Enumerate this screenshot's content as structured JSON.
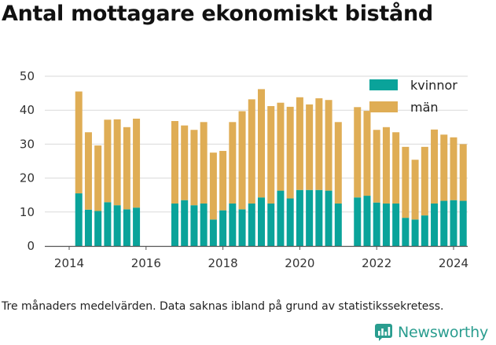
{
  "title": "Antal mottagare ekonomiskt bistånd",
  "caption": "Tre månaders medelvärden. Data saknas ibland på grund av statistikssekretess.",
  "brand": {
    "name": "Newsworthy",
    "icon": "newsworthy-logo-icon",
    "color": "#2a9d8f"
  },
  "colors": {
    "kvinnor": "#0aa39a",
    "man": "#dfad55",
    "grid": "#d9d9d9",
    "axis": "#555555"
  },
  "chart_data": {
    "type": "bar",
    "stacked": true,
    "x_ticks": [
      "2014",
      "2016",
      "2018",
      "2020",
      "2022",
      "2024"
    ],
    "y_ticks": [
      "0",
      "10",
      "20",
      "30",
      "40",
      "50"
    ],
    "ylim": [
      0,
      50
    ],
    "grid": true,
    "legend_position": "top-right",
    "series": [
      {
        "name": "kvinnor",
        "color": "#0aa39a",
        "points": [
          {
            "x": 2014.25,
            "v": 15.5
          },
          {
            "x": 2014.5,
            "v": 10.7
          },
          {
            "x": 2014.75,
            "v": 10.3
          },
          {
            "x": 2015.0,
            "v": 12.9
          },
          {
            "x": 2015.25,
            "v": 12.0
          },
          {
            "x": 2015.5,
            "v": 10.8
          },
          {
            "x": 2015.75,
            "v": 11.3
          },
          {
            "x": 2016.75,
            "v": 12.5
          },
          {
            "x": 2017.0,
            "v": 13.5
          },
          {
            "x": 2017.25,
            "v": 12.0
          },
          {
            "x": 2017.5,
            "v": 12.5
          },
          {
            "x": 2017.75,
            "v": 7.8
          },
          {
            "x": 2018.0,
            "v": 10.5
          },
          {
            "x": 2018.25,
            "v": 12.5
          },
          {
            "x": 2018.5,
            "v": 10.8
          },
          {
            "x": 2018.75,
            "v": 12.5
          },
          {
            "x": 2019.0,
            "v": 14.3
          },
          {
            "x": 2019.25,
            "v": 12.5
          },
          {
            "x": 2019.5,
            "v": 16.3
          },
          {
            "x": 2019.75,
            "v": 14.0
          },
          {
            "x": 2020.0,
            "v": 16.5
          },
          {
            "x": 2020.25,
            "v": 16.5
          },
          {
            "x": 2020.5,
            "v": 16.5
          },
          {
            "x": 2020.75,
            "v": 16.3
          },
          {
            "x": 2021.0,
            "v": 12.5
          },
          {
            "x": 2021.5,
            "v": 14.3
          },
          {
            "x": 2021.75,
            "v": 14.8
          },
          {
            "x": 2022.0,
            "v": 12.8
          },
          {
            "x": 2022.25,
            "v": 12.5
          },
          {
            "x": 2022.5,
            "v": 12.5
          },
          {
            "x": 2022.75,
            "v": 8.3
          },
          {
            "x": 2023.0,
            "v": 7.8
          },
          {
            "x": 2023.25,
            "v": 9.0
          },
          {
            "x": 2023.5,
            "v": 12.5
          },
          {
            "x": 2023.75,
            "v": 13.3
          },
          {
            "x": 2024.0,
            "v": 13.5
          },
          {
            "x": 2024.25,
            "v": 13.3
          }
        ]
      },
      {
        "name": "män",
        "color": "#dfad55",
        "points": [
          {
            "x": 2014.25,
            "v": 30.0
          },
          {
            "x": 2014.5,
            "v": 22.8
          },
          {
            "x": 2014.75,
            "v": 19.3
          },
          {
            "x": 2015.0,
            "v": 24.3
          },
          {
            "x": 2015.25,
            "v": 25.3
          },
          {
            "x": 2015.5,
            "v": 24.2
          },
          {
            "x": 2015.75,
            "v": 26.2
          },
          {
            "x": 2016.75,
            "v": 24.3
          },
          {
            "x": 2017.0,
            "v": 22.0
          },
          {
            "x": 2017.25,
            "v": 22.2
          },
          {
            "x": 2017.5,
            "v": 24.0
          },
          {
            "x": 2017.75,
            "v": 19.7
          },
          {
            "x": 2018.0,
            "v": 17.5
          },
          {
            "x": 2018.25,
            "v": 24.0
          },
          {
            "x": 2018.5,
            "v": 28.9
          },
          {
            "x": 2018.75,
            "v": 30.7
          },
          {
            "x": 2019.0,
            "v": 31.9
          },
          {
            "x": 2019.25,
            "v": 28.7
          },
          {
            "x": 2019.5,
            "v": 25.9
          },
          {
            "x": 2019.75,
            "v": 27.0
          },
          {
            "x": 2020.0,
            "v": 27.3
          },
          {
            "x": 2020.25,
            "v": 25.2
          },
          {
            "x": 2020.5,
            "v": 27.0
          },
          {
            "x": 2020.75,
            "v": 26.7
          },
          {
            "x": 2021.0,
            "v": 24.0
          },
          {
            "x": 2021.5,
            "v": 26.6
          },
          {
            "x": 2021.75,
            "v": 25.0
          },
          {
            "x": 2022.0,
            "v": 21.4
          },
          {
            "x": 2022.25,
            "v": 22.5
          },
          {
            "x": 2022.5,
            "v": 21.0
          },
          {
            "x": 2022.75,
            "v": 20.9
          },
          {
            "x": 2023.0,
            "v": 17.6
          },
          {
            "x": 2023.25,
            "v": 20.2
          },
          {
            "x": 2023.5,
            "v": 21.8
          },
          {
            "x": 2023.75,
            "v": 19.5
          },
          {
            "x": 2024.0,
            "v": 18.5
          },
          {
            "x": 2024.25,
            "v": 16.7
          }
        ]
      }
    ]
  }
}
